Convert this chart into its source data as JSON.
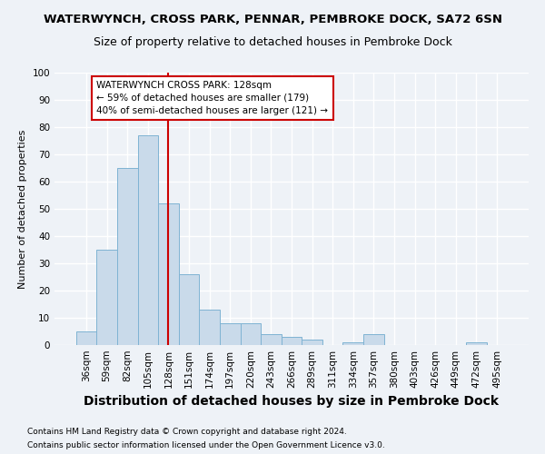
{
  "title": "WATERWYNCH, CROSS PARK, PENNAR, PEMBROKE DOCK, SA72 6SN",
  "subtitle": "Size of property relative to detached houses in Pembroke Dock",
  "xlabel": "Distribution of detached houses by size in Pembroke Dock",
  "ylabel": "Number of detached properties",
  "categories": [
    "36sqm",
    "59sqm",
    "82sqm",
    "105sqm",
    "128sqm",
    "151sqm",
    "174sqm",
    "197sqm",
    "220sqm",
    "243sqm",
    "266sqm",
    "289sqm",
    "311sqm",
    "334sqm",
    "357sqm",
    "380sqm",
    "403sqm",
    "426sqm",
    "449sqm",
    "472sqm",
    "495sqm"
  ],
  "values": [
    5,
    35,
    65,
    77,
    52,
    26,
    13,
    8,
    8,
    4,
    3,
    2,
    0,
    1,
    4,
    0,
    0,
    0,
    0,
    1,
    0
  ],
  "bar_color": "#c9daea",
  "bar_edge_color": "#7fb3d3",
  "vline_x_index": 4,
  "vline_color": "#cc0000",
  "annotation_line1": "WATERWYNCH CROSS PARK: 128sqm",
  "annotation_line2": "← 59% of detached houses are smaller (179)",
  "annotation_line3": "40% of semi-detached houses are larger (121) →",
  "annotation_box_color": "#ffffff",
  "annotation_box_edge": "#cc0000",
  "ylim": [
    0,
    100
  ],
  "yticks": [
    0,
    10,
    20,
    30,
    40,
    50,
    60,
    70,
    80,
    90,
    100
  ],
  "footnote1": "Contains HM Land Registry data © Crown copyright and database right 2024.",
  "footnote2": "Contains public sector information licensed under the Open Government Licence v3.0.",
  "bg_color": "#eef2f7",
  "grid_color": "#ffffff",
  "title_fontsize": 9.5,
  "subtitle_fontsize": 9,
  "xlabel_fontsize": 10,
  "ylabel_fontsize": 8,
  "tick_fontsize": 7.5,
  "footnote_fontsize": 6.5
}
